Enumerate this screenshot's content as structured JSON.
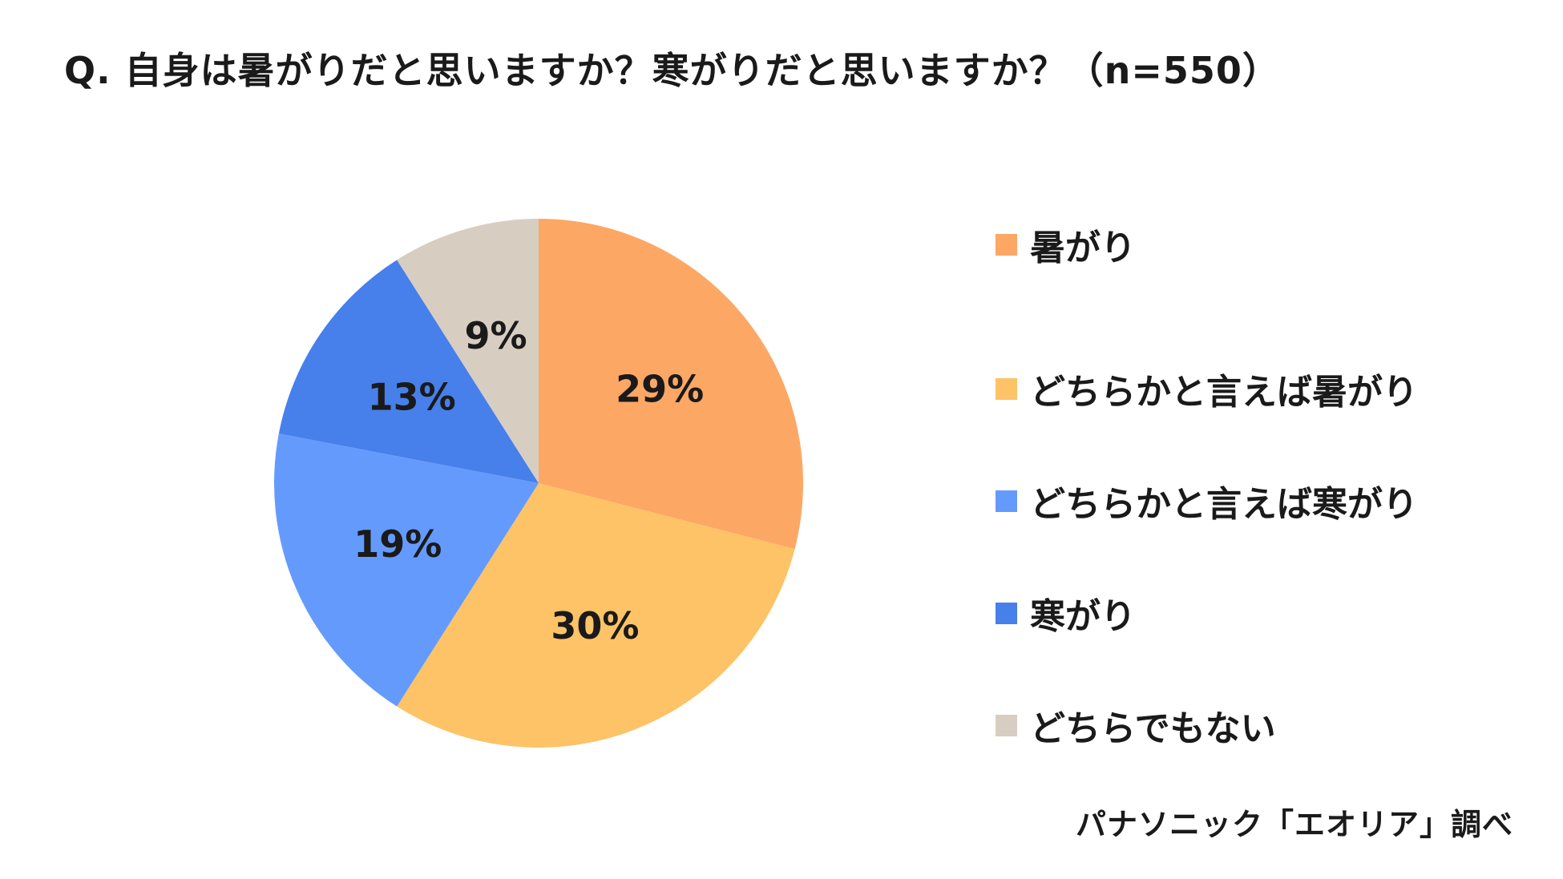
{
  "title": "Q. 自身は暑がりだと思いますか？寒がりだと思いますか？（n=550）",
  "source": "パナソニック「エオリア」調べ",
  "chart_data": {
    "type": "pie",
    "title": "Q. 自身は暑がりだと思いますか？寒がりだと思いますか？（n=550）",
    "legend_position": "right",
    "slices": [
      {
        "name": "暑がり",
        "value": 29,
        "label": "29%",
        "color": "#FDA765"
      },
      {
        "name": "どちらかと言えば暑がり",
        "value": 30,
        "label": "30%",
        "color": "#FDC366"
      },
      {
        "name": "どちらかと言えば寒がり",
        "value": 19,
        "label": "19%",
        "color": "#659AFD"
      },
      {
        "name": "寒がり",
        "value": 13,
        "label": "13%",
        "color": "#477FEB"
      },
      {
        "name": "どちらでもない",
        "value": 9,
        "label": "9%",
        "color": "#D8CDC1"
      }
    ]
  }
}
